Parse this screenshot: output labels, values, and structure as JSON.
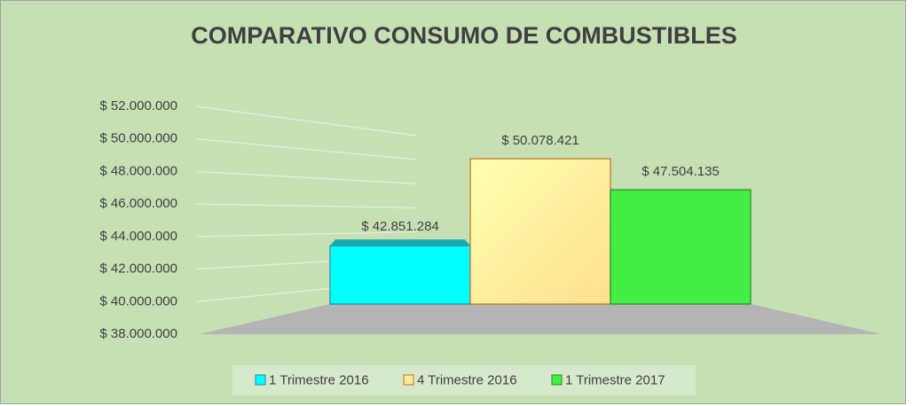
{
  "chart_data": {
    "type": "bar",
    "title": "COMPARATIVO  CONSUMO DE COMBUSTIBLES",
    "series": [
      {
        "name": "1 Trimestre 2016",
        "color": "#00ffff",
        "values": [
          42851284
        ],
        "value_labels": [
          "$ 42.851.284"
        ]
      },
      {
        "name": "4 Trimestre 2016",
        "color": "#ffeb9c",
        "values": [
          50078421
        ],
        "value_labels": [
          "$ 50.078.421"
        ]
      },
      {
        "name": "1 Trimestre 2017",
        "color": "#44ee44",
        "values": [
          47504135
        ],
        "value_labels": [
          "$ 47.504.135"
        ]
      }
    ],
    "ylim": [
      38000000,
      52000000
    ],
    "yticks": [
      {
        "value": 38000000,
        "label": "$ 38.000.000"
      },
      {
        "value": 40000000,
        "label": "$ 40.000.000"
      },
      {
        "value": 42000000,
        "label": "$ 42.000.000"
      },
      {
        "value": 44000000,
        "label": "$ 44.000.000"
      },
      {
        "value": 46000000,
        "label": "$ 46.000.000"
      },
      {
        "value": 48000000,
        "label": "$ 48.000.000"
      },
      {
        "value": 50000000,
        "label": "$ 50.000.000"
      },
      {
        "value": 52000000,
        "label": "$ 52.000.000"
      }
    ],
    "grid": true,
    "legend": "bottom"
  }
}
